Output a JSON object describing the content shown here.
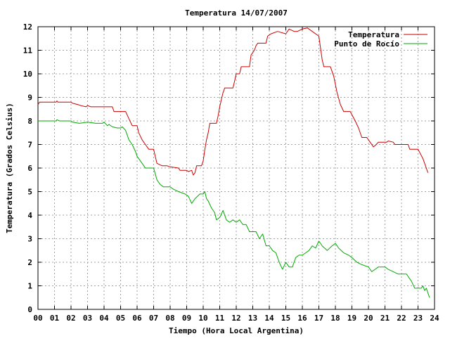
{
  "chart_data": {
    "type": "line",
    "title": "Temperatura 14/07/2007",
    "xlabel": "Tiempo (Hora Local Argentina)",
    "ylabel": "Temperatura (Grados Celsius)",
    "xlim": [
      0,
      24
    ],
    "ylim": [
      0,
      12
    ],
    "grid": true,
    "legend_position": "top-right",
    "x_ticks": [
      "00",
      "01",
      "02",
      "03",
      "04",
      "05",
      "06",
      "07",
      "08",
      "09",
      "10",
      "11",
      "12",
      "13",
      "14",
      "15",
      "16",
      "17",
      "18",
      "19",
      "20",
      "21",
      "22",
      "23",
      "24"
    ],
    "y_ticks": [
      "0",
      "1",
      "2",
      "3",
      "4",
      "5",
      "6",
      "7",
      "8",
      "9",
      "10",
      "11",
      "12"
    ],
    "series": [
      {
        "name": "Temperatura",
        "color": "#cc0000",
        "points": [
          [
            0.0,
            8.7
          ],
          [
            0.1,
            8.8
          ],
          [
            0.5,
            8.8
          ],
          [
            1.1,
            8.8
          ],
          [
            1.15,
            8.85
          ],
          [
            1.2,
            8.8
          ],
          [
            2.0,
            8.8
          ],
          [
            2.1,
            8.75
          ],
          [
            2.4,
            8.7
          ],
          [
            2.6,
            8.65
          ],
          [
            2.9,
            8.6
          ],
          [
            3.0,
            8.65
          ],
          [
            3.2,
            8.6
          ],
          [
            4.0,
            8.6
          ],
          [
            4.5,
            8.6
          ],
          [
            4.6,
            8.4
          ],
          [
            5.0,
            8.4
          ],
          [
            5.3,
            8.4
          ],
          [
            5.5,
            8.1
          ],
          [
            5.7,
            7.8
          ],
          [
            6.0,
            7.8
          ],
          [
            6.1,
            7.5
          ],
          [
            6.3,
            7.2
          ],
          [
            6.5,
            7.0
          ],
          [
            6.7,
            6.8
          ],
          [
            7.0,
            6.8
          ],
          [
            7.1,
            6.5
          ],
          [
            7.2,
            6.2
          ],
          [
            7.5,
            6.1
          ],
          [
            7.8,
            6.1
          ],
          [
            8.0,
            6.05
          ],
          [
            8.5,
            6.0
          ],
          [
            8.6,
            5.9
          ],
          [
            9.0,
            5.9
          ],
          [
            9.1,
            5.85
          ],
          [
            9.3,
            5.9
          ],
          [
            9.4,
            5.7
          ],
          [
            9.5,
            5.8
          ],
          [
            9.6,
            6.1
          ],
          [
            9.9,
            6.1
          ],
          [
            10.0,
            6.3
          ],
          [
            10.1,
            6.8
          ],
          [
            10.2,
            7.2
          ],
          [
            10.3,
            7.5
          ],
          [
            10.4,
            7.9
          ],
          [
            10.5,
            7.9
          ],
          [
            10.8,
            7.9
          ],
          [
            10.9,
            8.2
          ],
          [
            11.0,
            8.6
          ],
          [
            11.1,
            8.9
          ],
          [
            11.2,
            9.2
          ],
          [
            11.3,
            9.4
          ],
          [
            11.5,
            9.4
          ],
          [
            11.8,
            9.4
          ],
          [
            11.9,
            9.7
          ],
          [
            12.0,
            10.0
          ],
          [
            12.2,
            10.0
          ],
          [
            12.3,
            10.3
          ],
          [
            12.8,
            10.3
          ],
          [
            12.9,
            10.8
          ],
          [
            13.1,
            11.0
          ],
          [
            13.2,
            11.2
          ],
          [
            13.3,
            11.3
          ],
          [
            13.8,
            11.3
          ],
          [
            13.9,
            11.6
          ],
          [
            14.1,
            11.7
          ],
          [
            14.5,
            11.8
          ],
          [
            15.0,
            11.7
          ],
          [
            15.2,
            11.9
          ],
          [
            15.5,
            11.8
          ],
          [
            15.7,
            11.8
          ],
          [
            16.0,
            11.9
          ],
          [
            16.3,
            11.95
          ],
          [
            16.6,
            11.8
          ],
          [
            17.0,
            11.6
          ],
          [
            17.2,
            10.6
          ],
          [
            17.3,
            10.3
          ],
          [
            17.7,
            10.3
          ],
          [
            17.9,
            9.9
          ],
          [
            18.1,
            9.2
          ],
          [
            18.3,
            8.7
          ],
          [
            18.5,
            8.4
          ],
          [
            18.9,
            8.4
          ],
          [
            19.2,
            8.0
          ],
          [
            19.4,
            7.7
          ],
          [
            19.6,
            7.3
          ],
          [
            19.9,
            7.3
          ],
          [
            20.1,
            7.1
          ],
          [
            20.3,
            6.9
          ],
          [
            20.4,
            6.95
          ],
          [
            20.6,
            7.1
          ],
          [
            21.1,
            7.1
          ],
          [
            21.2,
            7.15
          ],
          [
            21.5,
            7.1
          ],
          [
            21.6,
            7.0
          ],
          [
            22.0,
            7.0
          ],
          [
            22.4,
            7.0
          ],
          [
            22.5,
            6.8
          ],
          [
            23.0,
            6.8
          ],
          [
            23.3,
            6.4
          ],
          [
            23.5,
            6.0
          ],
          [
            23.6,
            5.8
          ]
        ]
      },
      {
        "name": "Punto de Rocío",
        "color": "#00aa00",
        "points": [
          [
            0.0,
            8.0
          ],
          [
            0.5,
            8.0
          ],
          [
            1.1,
            8.0
          ],
          [
            1.15,
            8.05
          ],
          [
            1.3,
            8.0
          ],
          [
            2.0,
            8.0
          ],
          [
            2.1,
            7.95
          ],
          [
            2.5,
            7.9
          ],
          [
            3.0,
            7.95
          ],
          [
            3.5,
            7.9
          ],
          [
            3.9,
            7.9
          ],
          [
            4.0,
            7.95
          ],
          [
            4.2,
            7.8
          ],
          [
            4.3,
            7.85
          ],
          [
            4.5,
            7.75
          ],
          [
            4.8,
            7.7
          ],
          [
            5.0,
            7.7
          ],
          [
            5.1,
            7.75
          ],
          [
            5.3,
            7.6
          ],
          [
            5.5,
            7.2
          ],
          [
            5.7,
            7.0
          ],
          [
            5.9,
            6.7
          ],
          [
            6.0,
            6.5
          ],
          [
            6.3,
            6.2
          ],
          [
            6.5,
            6.0
          ],
          [
            7.0,
            6.0
          ],
          [
            7.2,
            5.5
          ],
          [
            7.4,
            5.3
          ],
          [
            7.6,
            5.2
          ],
          [
            8.0,
            5.2
          ],
          [
            8.2,
            5.1
          ],
          [
            8.5,
            5.0
          ],
          [
            8.9,
            4.9
          ],
          [
            9.1,
            4.8
          ],
          [
            9.3,
            4.5
          ],
          [
            9.5,
            4.7
          ],
          [
            9.8,
            4.9
          ],
          [
            10.0,
            4.9
          ],
          [
            10.1,
            5.0
          ],
          [
            10.2,
            4.7
          ],
          [
            10.3,
            4.6
          ],
          [
            10.5,
            4.3
          ],
          [
            10.7,
            4.1
          ],
          [
            10.8,
            3.8
          ],
          [
            11.0,
            3.9
          ],
          [
            11.2,
            4.2
          ],
          [
            11.4,
            3.8
          ],
          [
            11.6,
            3.7
          ],
          [
            11.8,
            3.8
          ],
          [
            12.0,
            3.7
          ],
          [
            12.2,
            3.8
          ],
          [
            12.4,
            3.6
          ],
          [
            12.6,
            3.6
          ],
          [
            12.8,
            3.3
          ],
          [
            13.0,
            3.3
          ],
          [
            13.2,
            3.3
          ],
          [
            13.4,
            3.0
          ],
          [
            13.6,
            3.2
          ],
          [
            13.8,
            2.7
          ],
          [
            14.0,
            2.7
          ],
          [
            14.2,
            2.5
          ],
          [
            14.4,
            2.4
          ],
          [
            14.6,
            2.0
          ],
          [
            14.8,
            1.7
          ],
          [
            15.0,
            2.0
          ],
          [
            15.2,
            1.8
          ],
          [
            15.4,
            1.8
          ],
          [
            15.6,
            2.2
          ],
          [
            15.8,
            2.3
          ],
          [
            16.0,
            2.3
          ],
          [
            16.2,
            2.4
          ],
          [
            16.4,
            2.5
          ],
          [
            16.6,
            2.7
          ],
          [
            16.8,
            2.6
          ],
          [
            17.0,
            2.9
          ],
          [
            17.2,
            2.7
          ],
          [
            17.5,
            2.5
          ],
          [
            17.8,
            2.7
          ],
          [
            18.0,
            2.8
          ],
          [
            18.2,
            2.6
          ],
          [
            18.5,
            2.4
          ],
          [
            18.8,
            2.3
          ],
          [
            19.0,
            2.2
          ],
          [
            19.3,
            2.0
          ],
          [
            19.6,
            1.9
          ],
          [
            20.0,
            1.8
          ],
          [
            20.2,
            1.6
          ],
          [
            20.4,
            1.7
          ],
          [
            20.6,
            1.8
          ],
          [
            21.0,
            1.8
          ],
          [
            21.2,
            1.7
          ],
          [
            21.5,
            1.6
          ],
          [
            21.8,
            1.5
          ],
          [
            22.3,
            1.5
          ],
          [
            22.4,
            1.4
          ],
          [
            22.6,
            1.2
          ],
          [
            22.8,
            0.9
          ],
          [
            23.2,
            0.9
          ],
          [
            23.3,
            1.0
          ],
          [
            23.4,
            0.8
          ],
          [
            23.5,
            0.9
          ],
          [
            23.7,
            0.5
          ]
        ]
      }
    ]
  }
}
